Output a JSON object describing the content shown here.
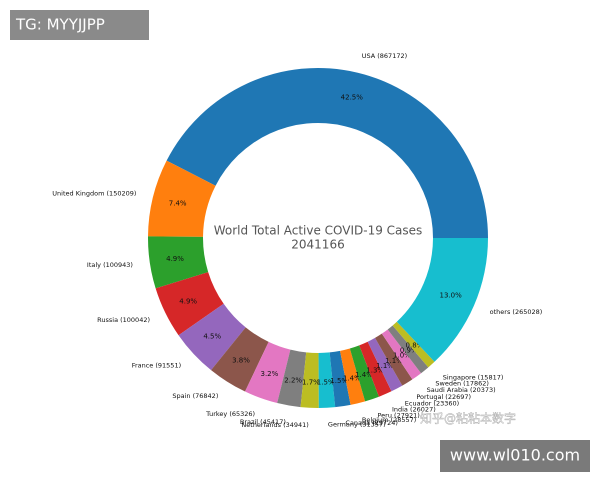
{
  "chart_data": {
    "type": "donut",
    "title": "World Total Active COVID-19 Cases",
    "subtitle": "2041166",
    "categories": [
      "USA (867172)",
      "United Kingdom (150209)",
      "Italy (100943)",
      "Russia (100042)",
      "France (91551)",
      "Spain (76842)",
      "Turkey (65326)",
      "Brazil (45417)",
      "Netherlands (34941)",
      "Germany (31357)",
      "Canada (29724)",
      "Belgium (28557)",
      "Peru (27921)",
      "India (26027)",
      "Ecuador (23360)",
      "Portugal (22697)",
      "Saudi Arabia (20373)",
      "Sweden (17862)",
      "Singapore (15817)",
      "others (265028)"
    ],
    "values": [
      867172,
      150209,
      100943,
      100042,
      91551,
      76842,
      65326,
      45417,
      34941,
      31357,
      29724,
      28557,
      27921,
      26027,
      23360,
      22697,
      20373,
      17862,
      15817,
      265028
    ],
    "value_labels": [
      "42.5%",
      "7.4%",
      "4.9%",
      "4.9%",
      "4.5%",
      "3.8%",
      "3.2%",
      "2.2%",
      "1.7%",
      "1.5%",
      "1.5%",
      "1.4%",
      "1.4%",
      "1.3%",
      "1.1%",
      "1.1%",
      "1.0%",
      "0.9%",
      "0.8%",
      "13.0%"
    ],
    "colors": [
      "#1f77b4",
      "#ff7f0e",
      "#2ca02c",
      "#d62728",
      "#9467bd",
      "#8c564b",
      "#e377c2",
      "#7f7f7f",
      "#bcbd22",
      "#17becf",
      "#1f77b4",
      "#ff7f0e",
      "#2ca02c",
      "#d62728",
      "#9467bd",
      "#8c564b",
      "#e377c2",
      "#7f7f7f",
      "#bcbd22",
      "#17becf"
    ]
  },
  "watermarks": {
    "top_left": "TG: MYYJJPP",
    "bottom_right": "www.wl010.com",
    "overlay": "知乎@粘粘本数字"
  }
}
